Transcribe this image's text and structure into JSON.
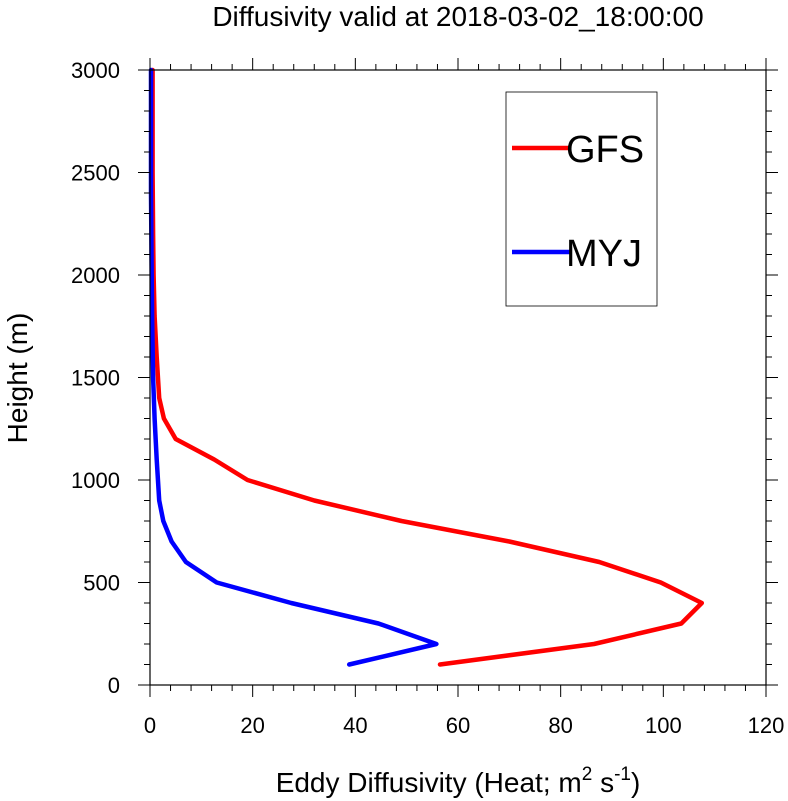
{
  "chart_data": {
    "type": "line",
    "title": "Diffusivity valid at 2018-03-02_18:00:00",
    "xlabel": "Eddy Diffusivity (Heat; m",
    "xlabel_sup1": "2",
    "xlabel_mid": " s",
    "xlabel_sup2": "-1",
    "xlabel_end": ")",
    "ylabel": "Height (m)",
    "xlim": [
      0,
      120
    ],
    "ylim": [
      0,
      3000
    ],
    "xticks": [
      0,
      20,
      40,
      60,
      80,
      100,
      120
    ],
    "yticks": [
      0,
      500,
      1000,
      1500,
      2000,
      2500,
      3000
    ],
    "xtick_labels": [
      "0",
      "20",
      "40",
      "60",
      "80",
      100,
      120
    ],
    "ytick_labels": [
      "0",
      "500",
      "1000",
      "1500",
      "2000",
      "2500",
      "3000"
    ],
    "grid": false,
    "legend_position": "top-right",
    "series": [
      {
        "name": "GFS",
        "color": "#ff0000",
        "x": [
          56.5,
          86.5,
          103.5,
          107.5,
          99.5,
          87.5,
          70,
          49,
          32,
          19,
          12.5,
          5,
          2.7,
          1.8,
          1.3,
          0.9,
          0.7,
          0.6,
          0.5,
          0.5,
          0.5
        ],
        "y": [
          100,
          200,
          300,
          400,
          500,
          600,
          700,
          800,
          900,
          1000,
          1100,
          1200,
          1300,
          1400,
          1600,
          1800,
          2000,
          2200,
          2500,
          2800,
          3000
        ]
      },
      {
        "name": "MYJ",
        "color": "#0000ff",
        "x": [
          38.8,
          55.8,
          44.5,
          27.5,
          13,
          7,
          4.2,
          2.6,
          1.8,
          1.3,
          0.9,
          0.6,
          0.4,
          0.3,
          0.2,
          0.2,
          0.2
        ],
        "y": [
          100,
          200,
          300,
          400,
          500,
          600,
          700,
          800,
          900,
          1100,
          1300,
          1500,
          1800,
          2100,
          2400,
          2700,
          3000
        ]
      }
    ]
  }
}
